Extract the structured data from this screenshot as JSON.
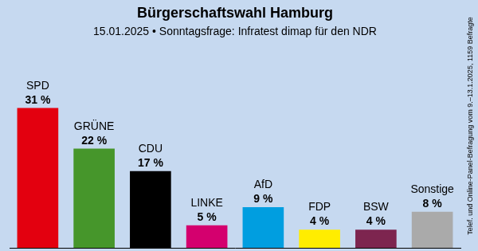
{
  "chart_data": {
    "type": "bar",
    "title": "Bürgerschaftswahl Hamburg",
    "subtitle": "15.01.2025 • Sonntagsfrage: Infratest dimap für den NDR",
    "annotations": [
      "Telef. und Online-Panel-Befragung vom 9.–13.1.2025, 1159 Befragte"
    ],
    "categories": [
      "SPD",
      "GRÜNE",
      "CDU",
      "LINKE",
      "AfD",
      "FDP",
      "BSW",
      "Sonstige"
    ],
    "values": [
      31,
      22,
      17,
      5,
      9,
      4,
      4,
      8
    ],
    "value_labels": [
      "31 %",
      "22 %",
      "17 %",
      "5 %",
      "9 %",
      "4 %",
      "4 %",
      "8 %"
    ],
    "colors": [
      "#e3000f",
      "#46962b",
      "#000000",
      "#d4006e",
      "#009ee0",
      "#ffed00",
      "#7d254f",
      "#aaaaaa"
    ],
    "ylim": [
      0,
      45
    ],
    "grid": false,
    "data_labels": true,
    "tick_labels": false
  }
}
